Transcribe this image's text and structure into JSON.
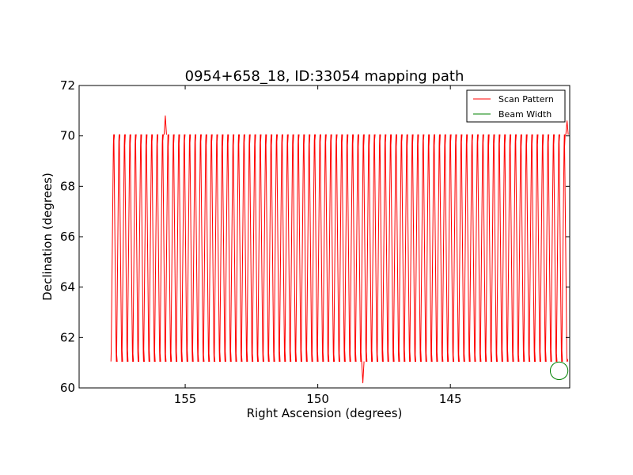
{
  "chart_data": {
    "type": "line",
    "title": "0954+658_18, ID:33054 mapping path",
    "xlabel": "Right Ascension (degrees)",
    "ylabel": "Declination (degrees)",
    "xlim": [
      159.0,
      140.5
    ],
    "ylim": [
      60,
      72
    ],
    "x_inverted": true,
    "x_ticks": [
      155,
      150,
      145
    ],
    "y_ticks": [
      60,
      62,
      64,
      66,
      68,
      70,
      72
    ],
    "grid": false,
    "legend_position": "top-right",
    "series": [
      {
        "name": "Scan Pattern",
        "color": "#ff0000",
        "ra_start": 157.8,
        "ra_end": 140.6,
        "dec_low": 61.05,
        "dec_high": 70.05,
        "sweeps": 168,
        "spikes": [
          {
            "ra": 155.75,
            "dec": 70.8
          },
          {
            "ra": 148.3,
            "dec": 60.2
          },
          {
            "ra": 140.6,
            "dec": 70.6
          }
        ]
      },
      {
        "name": "Beam Width",
        "color": "#008000",
        "center_ra": 140.9,
        "center_dec": 60.68,
        "radius_deg": 0.35
      }
    ]
  }
}
